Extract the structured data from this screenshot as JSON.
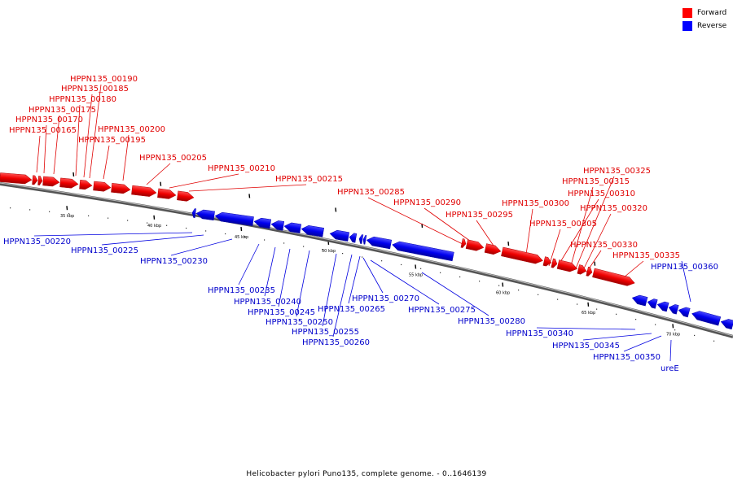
{
  "legend": {
    "forward_label": "Forward",
    "reverse_label": "Reverse",
    "forward_color": "#ff0000",
    "reverse_color": "#0000ff"
  },
  "footer": {
    "caption": "Helicobacter pylori Puno135, complete genome. - 0..1646139"
  },
  "ticks": [
    "35 kbp",
    "40 kbp",
    "45 kbp",
    "50 kbp",
    "55 kbp",
    "60 kbp",
    "65 kbp",
    "70 kbp"
  ],
  "forward_genes": [
    "HPPN135_00165",
    "HPPN135_00170",
    "HPPN135_00175",
    "HPPN135_00180",
    "HPPN135_00185",
    "HPPN135_00190",
    "HPPN135_00195",
    "HPPN135_00200",
    "HPPN135_00205",
    "HPPN135_00210",
    "HPPN135_00215",
    "HPPN135_00285",
    "HPPN135_00290",
    "HPPN135_00295",
    "HPPN135_00300",
    "HPPN135_00305",
    "HPPN135_00310",
    "HPPN135_00315",
    "HPPN135_00320",
    "HPPN135_00325",
    "HPPN135_00330",
    "HPPN135_00335"
  ],
  "reverse_genes": [
    "HPPN135_00220",
    "HPPN135_00225",
    "HPPN135_00230",
    "HPPN135_00235",
    "HPPN135_00240",
    "HPPN135_00245",
    "HPPN135_00250",
    "HPPN135_00255",
    "HPPN135_00260",
    "HPPN135_00265",
    "HPPN135_00270",
    "HPPN135_00275",
    "HPPN135_00280",
    "HPPN135_00340",
    "HPPN135_00345",
    "HPPN135_00350",
    "HPPN135_00360",
    "ureE"
  ]
}
